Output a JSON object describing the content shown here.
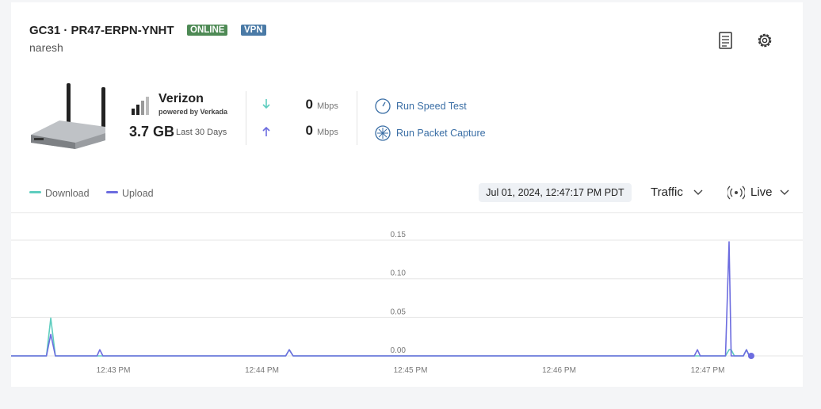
{
  "header": {
    "title": "GC31 · PR47-ERPN-YNHT",
    "badges": [
      "ONLINE",
      "VPN"
    ],
    "subtitle": "naresh"
  },
  "carrier": {
    "name": "Verizon",
    "powered_by": "powered by Verkada",
    "usage": "3.7 GB",
    "usage_period": "Last 30 Days"
  },
  "speeds": [
    {
      "value": "0",
      "unit": "Mbps"
    },
    {
      "value": "0",
      "unit": "Mbps"
    }
  ],
  "actions": [
    "Run Speed Test",
    "Run Packet Capture"
  ],
  "timestamp": "Jul 01, 2024, 12:47:17 PM PDT",
  "metric": "Traffic",
  "mode": "Live",
  "chart_data": {
    "type": "line",
    "x": [
      762.312,
      762.55,
      762.579,
      762.61,
      762.89,
      762.909,
      762.93,
      764.16,
      764.184,
      764.21,
      766.91,
      766.931,
      766.95,
      767.12,
      767.144,
      767.158,
      767.18,
      767.24,
      767.261,
      767.28,
      767.293
    ],
    "series": [
      {
        "name": "Download",
        "color": "#5ecdbf",
        "values": [
          0,
          0,
          0.049,
          0,
          0,
          0,
          0,
          0,
          0.008,
          0,
          0,
          0,
          0,
          0,
          0.008,
          0.008,
          0,
          0,
          0.008,
          0,
          0
        ]
      },
      {
        "name": "Upload",
        "color": "#6c6cdf",
        "values": [
          0,
          0,
          0.028,
          0,
          0,
          0.008,
          0,
          0,
          0.008,
          0,
          0,
          0.008,
          0,
          0,
          0.148,
          0,
          0,
          0,
          0.008,
          0,
          0
        ]
      }
    ],
    "xlim": [
      762.312,
      767.64
    ],
    "xticks": [
      {
        "value": 763,
        "label": "12:43 PM"
      },
      {
        "value": 764,
        "label": "12:44 PM"
      },
      {
        "value": 765,
        "label": "12:45 PM"
      },
      {
        "value": 766,
        "label": "12:46 PM"
      },
      {
        "value": 767,
        "label": "12:47 PM"
      }
    ],
    "ylim": [
      0,
      0.185
    ],
    "yticks": [
      {
        "value": 0,
        "label": "0.00"
      },
      {
        "value": 0.05,
        "label": "0.05"
      },
      {
        "value": 0.1,
        "label": "0.10"
      },
      {
        "value": 0.15,
        "label": "0.15"
      }
    ],
    "grid": true
  }
}
